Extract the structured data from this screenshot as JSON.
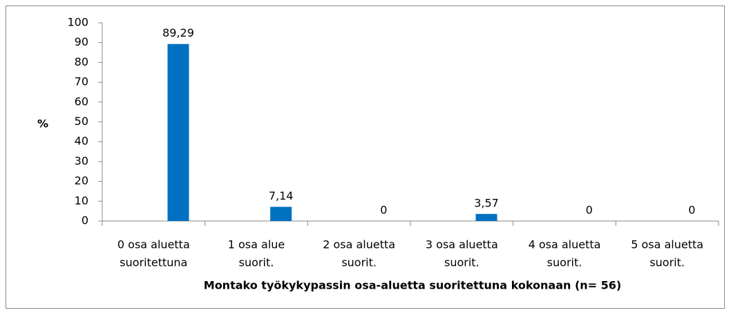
{
  "chart_data": {
    "type": "bar",
    "categories": [
      [
        "0 osa aluetta",
        "suoritettuna"
      ],
      [
        "1 osa alue",
        "suorit."
      ],
      [
        "2 osa aluetta",
        "suorit."
      ],
      [
        "3 osa aluetta",
        "suorit."
      ],
      [
        "4 osa aluetta",
        "suorit."
      ],
      [
        "5 osa aluetta",
        "suorit."
      ]
    ],
    "values": [
      89.29,
      7.14,
      0,
      3.57,
      0,
      0
    ],
    "value_labels": [
      "89,29",
      "7,14",
      "0",
      "3,57",
      "0",
      "0"
    ],
    "color": "#0070c0",
    "y_label": "%",
    "x_label": "Montako työkykypassin osa-aluetta suoritettuna kokonaan (n= 56)",
    "ylim": [
      0,
      100
    ],
    "yticks": [
      0,
      10,
      20,
      30,
      40,
      50,
      60,
      70,
      80,
      90,
      100
    ]
  }
}
